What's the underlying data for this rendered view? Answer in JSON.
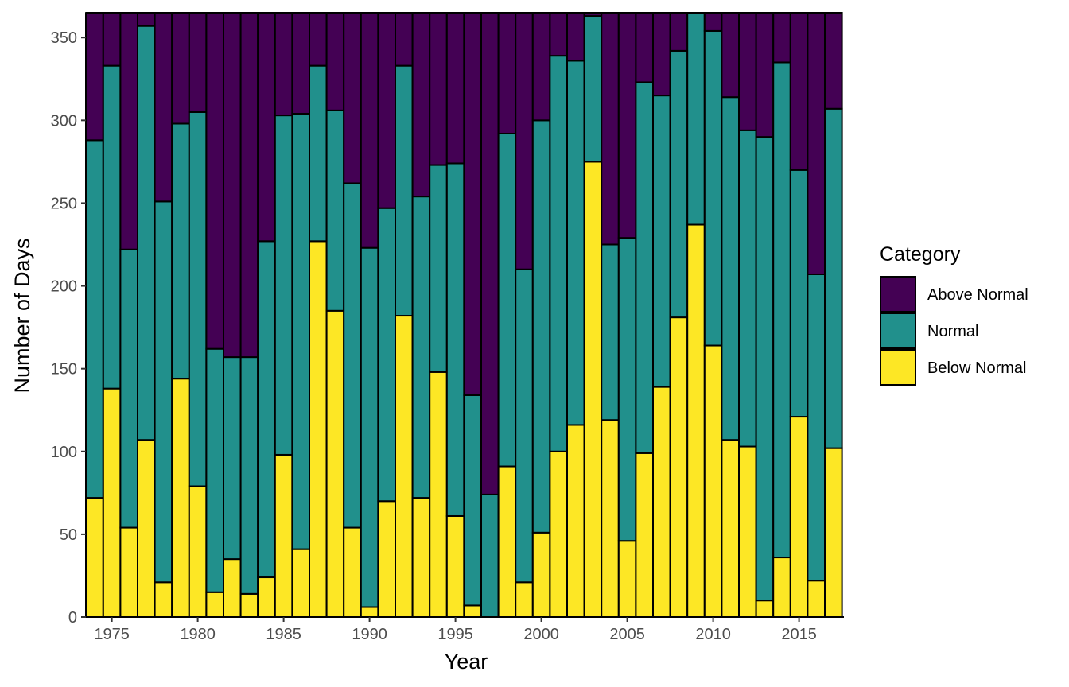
{
  "chart_data": {
    "type": "bar",
    "stacked": true,
    "xlabel": "Year",
    "ylabel": "Number of Days",
    "ylim": [
      0,
      365
    ],
    "y_ticks": [
      0,
      50,
      100,
      150,
      200,
      250,
      300,
      350
    ],
    "x_ticks": [
      1975,
      1980,
      1985,
      1990,
      1995,
      2000,
      2005,
      2010,
      2015
    ],
    "x": [
      1974,
      1975,
      1976,
      1977,
      1978,
      1979,
      1980,
      1981,
      1982,
      1983,
      1984,
      1985,
      1986,
      1987,
      1988,
      1989,
      1990,
      1991,
      1992,
      1993,
      1994,
      1995,
      1996,
      1997,
      1998,
      1999,
      2000,
      2001,
      2002,
      2003,
      2004,
      2005,
      2006,
      2007,
      2008,
      2009,
      2010,
      2011,
      2012,
      2013,
      2014,
      2015,
      2016,
      2017
    ],
    "legend": {
      "title": "Category",
      "position": "right"
    },
    "series": [
      {
        "name": "Above Normal",
        "color": "#440154",
        "values": [
          77,
          32,
          143,
          8,
          114,
          67,
          60,
          203,
          208,
          208,
          138,
          62,
          61,
          32,
          59,
          103,
          142,
          118,
          32,
          111,
          92,
          91,
          231,
          291,
          73,
          155,
          65,
          26,
          29,
          2,
          140,
          136,
          42,
          50,
          23,
          0,
          11,
          51,
          71,
          75,
          30,
          95,
          158,
          58
        ]
      },
      {
        "name": "Normal",
        "color": "#21908C",
        "values": [
          216,
          195,
          168,
          250,
          230,
          154,
          226,
          147,
          122,
          143,
          203,
          205,
          263,
          106,
          121,
          208,
          217,
          177,
          151,
          182,
          125,
          213,
          127,
          74,
          201,
          189,
          249,
          239,
          220,
          88,
          106,
          183,
          224,
          176,
          161,
          128,
          190,
          207,
          191,
          280,
          299,
          149,
          185,
          205
        ]
      },
      {
        "name": "Below Normal",
        "color": "#FDE725",
        "values": [
          72,
          138,
          54,
          107,
          21,
          144,
          79,
          15,
          35,
          14,
          24,
          98,
          41,
          227,
          185,
          54,
          6,
          70,
          182,
          72,
          148,
          61,
          7,
          0,
          91,
          21,
          51,
          100,
          116,
          275,
          119,
          46,
          99,
          139,
          181,
          237,
          164,
          107,
          103,
          10,
          36,
          121,
          22,
          102
        ]
      }
    ]
  }
}
